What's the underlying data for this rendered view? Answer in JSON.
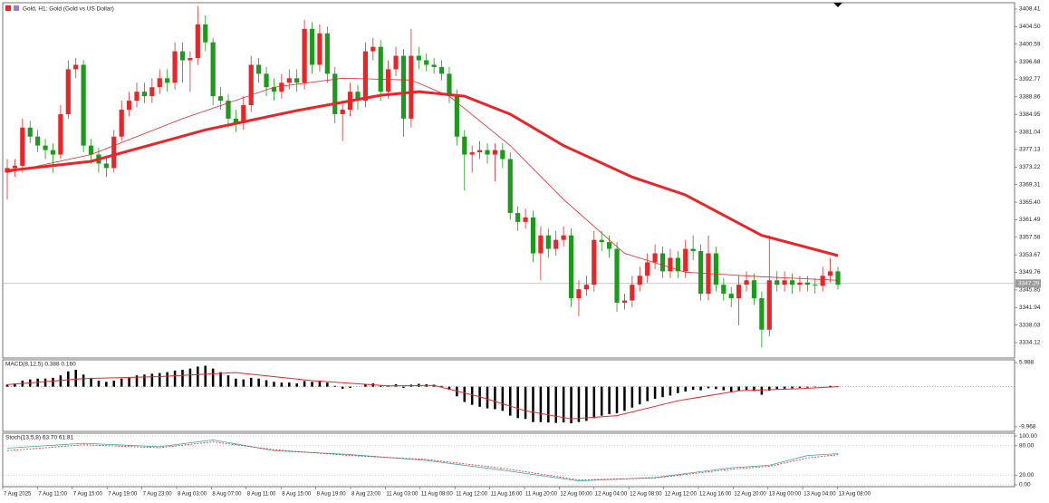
{
  "chart_data": [
    {
      "type": "candlestick",
      "title": "Gold, H1: Gold (Gold vs US Dollar)",
      "up_color": "#e8262a",
      "down_color": "#1b9a1b",
      "open": [
        3372,
        3373,
        3373.5,
        3382,
        3380,
        3378,
        3377,
        3376,
        3385,
        3395,
        3396,
        3378,
        3376,
        3374,
        3373,
        3380,
        3386,
        3388,
        3390,
        3389,
        3391,
        3393,
        3392,
        3399,
        3397,
        3397.5,
        3405,
        3401,
        3389,
        3388,
        3384,
        3383,
        3387,
        3396,
        3394,
        3391,
        3390,
        3392,
        3393,
        3392,
        3404,
        3396,
        3403,
        3394,
        3385,
        3386,
        3390,
        3388,
        3399,
        3400,
        3390,
        3395,
        3398,
        3384,
        3398,
        3397,
        3396,
        3395.5,
        3394,
        3389,
        3380,
        3376,
        3376.5,
        3377,
        3376,
        3377,
        3375,
        3363,
        3361,
        3362,
        3354,
        3358,
        3355,
        3357,
        3358,
        3344,
        3346,
        3347,
        3357,
        3356.5,
        3355,
        3343,
        3343.5,
        3347,
        3349,
        3352,
        3354,
        3350,
        3353,
        3350,
        3355,
        3354.5,
        3345,
        3354,
        3347,
        3345,
        3344,
        3347,
        3348,
        3344,
        3337,
        3348,
        3347,
        3348,
        3347,
        3347.5,
        3347,
        3346.8,
        3349,
        3350
      ],
      "high": [
        3375,
        3375,
        3384,
        3383.5,
        3381.5,
        3379.5,
        3378.5,
        3387,
        3397,
        3397.5,
        3397,
        3379.5,
        3377.5,
        3375.5,
        3381.5,
        3388,
        3390,
        3392,
        3392,
        3393,
        3395,
        3395,
        3401,
        3401,
        3399,
        3409,
        3407,
        3402,
        3391,
        3389.5,
        3386,
        3389,
        3398,
        3397.5,
        3395.5,
        3393,
        3394,
        3395,
        3395,
        3406,
        3405.5,
        3405,
        3404.5,
        3395.5,
        3388,
        3392,
        3391.5,
        3401,
        3402,
        3401.5,
        3397,
        3400,
        3399.5,
        3404,
        3400,
        3398.5,
        3397.5,
        3397,
        3395.5,
        3390.5,
        3381.5,
        3378,
        3379,
        3378.5,
        3378.5,
        3378.5,
        3376.5,
        3364.5,
        3364,
        3363.5,
        3360,
        3359.5,
        3359,
        3360,
        3359.5,
        3348,
        3349,
        3359,
        3359,
        3358,
        3356.5,
        3345,
        3349,
        3351,
        3354,
        3356,
        3355.5,
        3355,
        3354.5,
        3357,
        3358,
        3356,
        3358,
        3355.5,
        3348.5,
        3346.5,
        3349,
        3350,
        3349.5,
        3345.5,
        3358,
        3350,
        3350,
        3349.5,
        3349,
        3349,
        3348.5,
        3351,
        3353,
        3351
      ],
      "low": [
        3366,
        3371,
        3372,
        3378.5,
        3376.5,
        3375,
        3372,
        3375,
        3384,
        3393,
        3376.5,
        3374,
        3372,
        3371,
        3372,
        3379,
        3384.5,
        3386.5,
        3387.5,
        3387.5,
        3389.5,
        3390,
        3390.5,
        3392,
        3390,
        3396,
        3399,
        3387,
        3386,
        3382,
        3381,
        3381.5,
        3385.5,
        3392,
        3389,
        3388,
        3388.5,
        3390.5,
        3390,
        3390.5,
        3394,
        3394.5,
        3392,
        3383,
        3379,
        3384.5,
        3386,
        3386.5,
        3397,
        3388,
        3388.5,
        3393.5,
        3380,
        3382,
        3395,
        3394.5,
        3394,
        3392.5,
        3387.5,
        3378,
        3368,
        3372,
        3375,
        3374,
        3370,
        3373,
        3361.5,
        3359,
        3359.5,
        3352,
        3348,
        3353,
        3353.5,
        3355.5,
        3342,
        3340,
        3344.5,
        3345.5,
        3354.5,
        3353,
        3341,
        3341.5,
        3342,
        3345.5,
        3347.5,
        3350.5,
        3348.5,
        3348.5,
        3348.5,
        3348.5,
        3352.5,
        3343.5,
        3343.5,
        3345.5,
        3343.5,
        3342,
        3338,
        3345.5,
        3342.5,
        3333,
        3335.5,
        3345.5,
        3345.5,
        3345,
        3345.5,
        3345.5,
        3345,
        3345.5,
        3347.5,
        3346
      ],
      "close": [
        3373,
        3373.5,
        3382,
        3380,
        3378,
        3377,
        3376,
        3385,
        3395,
        3396,
        3378,
        3376,
        3374,
        3373,
        3380,
        3386,
        3388,
        3390,
        3389,
        3391,
        3393,
        3392,
        3399,
        3397,
        3397.5,
        3405,
        3401,
        3389,
        3388,
        3384,
        3383,
        3387,
        3396,
        3394,
        3391,
        3390,
        3392,
        3393,
        3392,
        3404,
        3396,
        3403,
        3394,
        3385,
        3386,
        3390,
        3388,
        3399,
        3400,
        3390,
        3395,
        3398,
        3384,
        3398,
        3397,
        3396,
        3395.5,
        3394,
        3389,
        3380,
        3376,
        3376.5,
        3377,
        3376,
        3377,
        3375,
        3363,
        3361,
        3362,
        3354,
        3358,
        3355,
        3357,
        3358,
        3344,
        3346,
        3347,
        3357,
        3356.5,
        3355,
        3343,
        3343.5,
        3347,
        3349,
        3352,
        3354,
        3350,
        3353,
        3350,
        3355,
        3354.5,
        3345,
        3354,
        3347,
        3345,
        3344,
        3347,
        3348,
        3344,
        3337,
        3348,
        3347,
        3348,
        3347,
        3347.5,
        3347,
        3346.8,
        3349,
        3350,
        3347
      ],
      "series": [
        {
          "color": "#e8262a",
          "width": 3,
          "x": [
            0,
            11,
            26,
            38,
            49,
            54,
            60,
            66,
            73,
            82,
            89,
            99,
            109
          ],
          "values": [
            3372.4,
            3374.5,
            3381.5,
            3385.8,
            3389.2,
            3390,
            3389,
            3385,
            3378,
            3371,
            3367,
            3358,
            3353.5
          ]
        },
        {
          "color": "#e8262a",
          "width": 0.8,
          "x": [
            0,
            11,
            23,
            35,
            44,
            53,
            58,
            66,
            73,
            81,
            89,
            99,
            109
          ],
          "values": [
            3372,
            3376,
            3384,
            3391,
            3393,
            3392.6,
            3389,
            3378,
            3366,
            3354,
            3349.8,
            3348.8,
            3348
          ]
        }
      ],
      "current_price": 3347.29,
      "ylim": [
        3330.69,
        3409.82
      ],
      "yticks": [
        3408.41,
        {
          "value": 3404.5,
          "label": "3404.50"
        },
        3400.59,
        3396.68,
        3392.77,
        3388.86,
        3384.95,
        3381.04,
        3377.13,
        3373.22,
        3369.31,
        {
          "value": 3365.4,
          "label": "3365.40"
        },
        3361.49,
        3357.58,
        3353.67,
        3349.76,
        3345.85,
        3341.94,
        3338.03,
        3334.12
      ]
    },
    {
      "type": "bar",
      "title": "MACD(8,12,5) 0.388 0.160",
      "color": "#000000",
      "values": [
        0.5,
        0.8,
        1.5,
        1.8,
        2,
        2,
        2.2,
        2.8,
        3.8,
        4.2,
        3.0,
        2.2,
        1.5,
        1.2,
        1.5,
        2.0,
        2.4,
        2.8,
        3.0,
        3.2,
        3.4,
        3.6,
        4.0,
        4.2,
        4.5,
        5.0,
        5.2,
        4.5,
        3.6,
        2.8,
        2.0,
        1.8,
        2.2,
        2.0,
        1.6,
        1.2,
        1.0,
        1.0,
        0.8,
        1.4,
        1.2,
        1.5,
        1.0,
        0.2,
        -0.5,
        -0.3,
        0.0,
        0.6,
        0.8,
        0.2,
        0.3,
        0.6,
        -0.3,
        0.5,
        0.7,
        0.6,
        0.5,
        0.2,
        -0.8,
        -2.4,
        -3.8,
        -4.5,
        -5.0,
        -5.4,
        -5.6,
        -6.0,
        -7.2,
        -7.8,
        -8.0,
        -8.8,
        -8.8,
        -8.9,
        -9.0,
        -8.9,
        -9.1,
        -8.8,
        -8.5,
        -7.8,
        -7.2,
        -6.8,
        -6.6,
        -6.0,
        -5.2,
        -4.4,
        -3.6,
        -3.0,
        -2.6,
        -2.2,
        -1.6,
        -1.2,
        -0.8,
        -0.9,
        -0.4,
        -0.6,
        -0.9,
        -1.2,
        -1.0,
        -0.8,
        -1.1,
        -2.0,
        -1.0,
        -0.6,
        -0.5,
        -0.4,
        -0.3,
        -0.2,
        -0.1,
        0.0,
        0.2,
        0.1
      ],
      "series": [
        {
          "color": "#e8262a",
          "width": 1,
          "x": [
            0,
            10,
            20,
            30,
            40,
            50,
            56,
            62,
            68,
            74,
            80,
            88,
            96,
            104,
            109
          ],
          "values": [
            0.5,
            2.0,
            2.5,
            3.5,
            1.5,
            0.2,
            0.3,
            -2.5,
            -6.0,
            -8.0,
            -7.2,
            -3.5,
            -1.0,
            -0.5,
            0.0
          ]
        }
      ],
      "ylim": [
        -11.11,
        6.67
      ],
      "yticks": [
        5.988,
        -9.968
      ]
    },
    {
      "type": "line",
      "title": "Stoch(13,5,8) 63.70 61.81",
      "series": [
        {
          "color": "#3aa6a0",
          "width": 0.8,
          "x": [
            0,
            10,
            20,
            27,
            35,
            45,
            55,
            65,
            75,
            85,
            95,
            100,
            105,
            109
          ],
          "values": [
            75,
            85,
            78,
            92,
            70,
            62,
            50,
            30,
            8,
            15,
            35,
            40,
            60,
            63.7
          ]
        },
        {
          "color": "#e8262a",
          "width": 0.8,
          "dashed": true,
          "x": [
            0,
            10,
            20,
            27,
            35,
            45,
            55,
            65,
            75,
            85,
            95,
            100,
            105,
            109
          ],
          "values": [
            70,
            82,
            76,
            88,
            72,
            60,
            52,
            34,
            10,
            14,
            32,
            38,
            55,
            61.8
          ]
        }
      ],
      "ylim": [
        -3.77,
        105.66
      ],
      "yticks": [
        {
          "value": 100,
          "label": "100.00"
        },
        {
          "value": 80,
          "label": "80.00"
        },
        {
          "value": 20,
          "label": "20.00"
        },
        {
          "value": 0,
          "label": "0.00"
        }
      ],
      "xtick_labels": [
        "7 Aug 2025",
        "7 Aug 11:00",
        "7 Aug 15:00",
        "7 Aug 19:00",
        "7 Aug 23:00",
        "8 Aug 03:00",
        "8 Aug 07:00",
        "8 Aug 11:00",
        "8 Aug 15:00",
        "8 Aug 19:00",
        "8 Aug 23:00",
        "11 Aug 03:00",
        "11 Aug 08:00",
        "11 Aug 12:00",
        "11 Aug 16:00",
        "11 Aug 20:00",
        "12 Aug 00:00",
        "12 Aug 04:00",
        "12 Aug 08:00",
        "12 Aug 12:00",
        "12 Aug 16:00",
        "12 Aug 20:00",
        "13 Aug 00:00",
        "13 Aug 04:00",
        "13 Aug 08:00"
      ]
    }
  ]
}
